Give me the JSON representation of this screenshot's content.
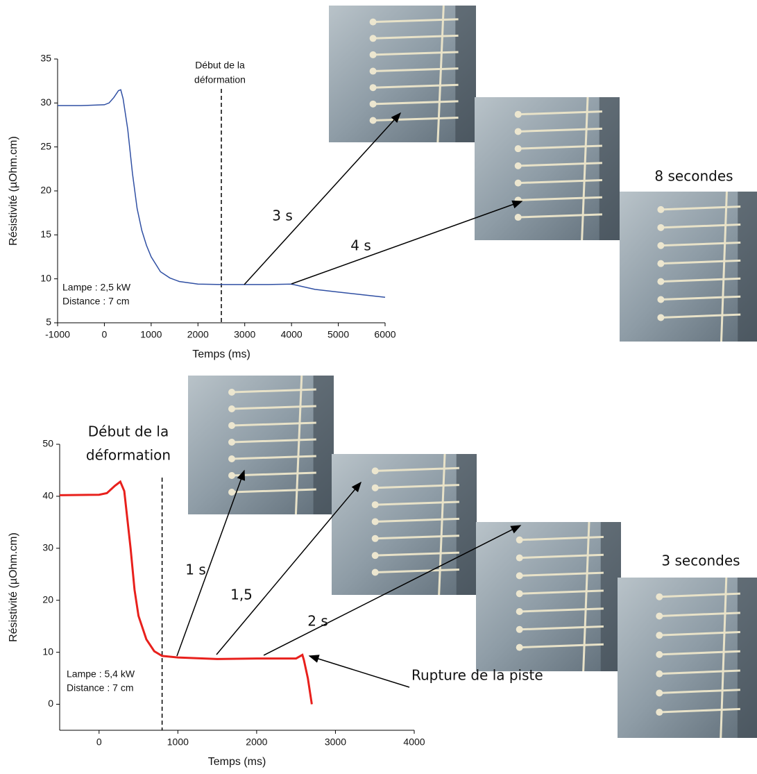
{
  "chart_data": [
    {
      "type": "line",
      "color": "#2f4fa3",
      "xlabel": "Temps (ms)",
      "ylabel": "Résistivité (µOhm.cm)",
      "xlim": [
        -1000,
        6000
      ],
      "ylim": [
        5,
        35
      ],
      "xticks": [
        -1000,
        0,
        1000,
        2000,
        3000,
        4000,
        5000,
        6000
      ],
      "yticks": [
        5,
        10,
        15,
        20,
        25,
        30,
        35
      ],
      "x": [
        -1000,
        -500,
        0,
        100,
        200,
        300,
        350,
        400,
        500,
        600,
        700,
        800,
        900,
        1000,
        1200,
        1400,
        1600,
        2000,
        2500,
        3000,
        3500,
        4000,
        4500,
        5000,
        5500,
        6000
      ],
      "values": [
        29.7,
        29.7,
        29.8,
        30.0,
        30.6,
        31.4,
        31.5,
        30.5,
        27,
        22,
        18,
        15.5,
        13.8,
        12.5,
        10.8,
        10.1,
        9.7,
        9.4,
        9.35,
        9.35,
        9.35,
        9.4,
        8.8,
        8.5,
        8.2,
        7.9
      ],
      "deformation_start": 2500,
      "start_label": [
        "Début de la",
        "déformation"
      ],
      "conditions": [
        "Lampe : 2,5 kW",
        "Distance : 7 cm"
      ],
      "arrow_labels": [
        "3 s",
        "4 s"
      ],
      "photo_label": "8 secondes"
    },
    {
      "type": "line",
      "color": "#e8201c",
      "xlabel": "Temps (ms)",
      "ylabel": "Résistivité (µOhm.cm)",
      "xlim": [
        -500,
        4000
      ],
      "ylim": [
        -5,
        50
      ],
      "xticks": [
        0,
        1000,
        2000,
        3000,
        4000
      ],
      "yticks": [
        0,
        10,
        20,
        30,
        40,
        50
      ],
      "x": [
        -500,
        0,
        100,
        200,
        270,
        320,
        400,
        450,
        500,
        600,
        700,
        800,
        1000,
        1500,
        2000,
        2500,
        2580,
        2600,
        2650,
        2700
      ],
      "values": [
        40.2,
        40.3,
        40.6,
        42,
        42.8,
        41,
        30,
        22,
        17,
        12.5,
        10.2,
        9.3,
        9.0,
        8.7,
        8.8,
        8.8,
        9.5,
        8.5,
        5,
        0
      ],
      "deformation_start": 800,
      "start_label": [
        "Début de la",
        "déformation"
      ],
      "conditions": [
        "Lampe : 5,4 kW",
        "Distance : 7 cm"
      ],
      "arrow_labels": [
        "1 s",
        "1,5",
        "2 s"
      ],
      "rupture_label": "Rupture de la piste",
      "photo_label": "3 secondes"
    }
  ]
}
